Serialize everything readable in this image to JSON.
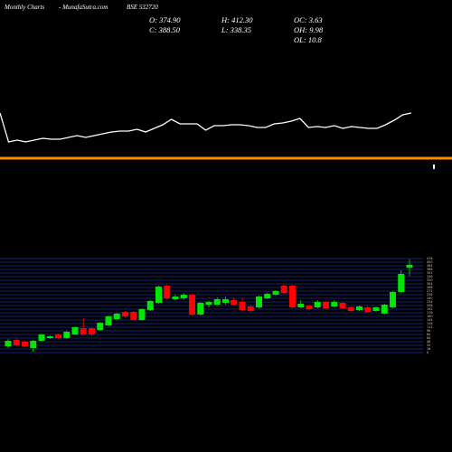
{
  "header": {
    "left": "Monthly Charts",
    "site": "- MunafaSutra.com",
    "symbol": "BSE 532720",
    "stats": [
      "O: 374.90",
      "C: 388.50",
      "H: 412.30",
      "L: 338.35",
      "OC: 3.63",
      "OH: 9.98",
      "OL: 10.8"
    ]
  },
  "chart_data": [
    {
      "type": "line",
      "color": "#ffffff",
      "ylim": [
        0,
        60
      ],
      "values": [
        45,
        13,
        15,
        13,
        15,
        17,
        16,
        16,
        18,
        20,
        18,
        20,
        22,
        24,
        25,
        25,
        27,
        24,
        28,
        32,
        38,
        33,
        33,
        33,
        26,
        31,
        31,
        32,
        32,
        31,
        29,
        29,
        33,
        34,
        36,
        39,
        29,
        30,
        29,
        31,
        28,
        30,
        29,
        28,
        28,
        32,
        37,
        43,
        45
      ]
    },
    {
      "type": "candlestick",
      "up_color": "#00e600",
      "down_color": "#ff0000",
      "grid": true,
      "ylim": [
        0,
        420
      ],
      "yticks": [
        0,
        16,
        32,
        48,
        64,
        80,
        96,
        112,
        128,
        144,
        160,
        176,
        192,
        208,
        224,
        240,
        256,
        272,
        288,
        304,
        320,
        336,
        352,
        368,
        384,
        400,
        416
      ],
      "open": [
        28,
        56,
        48,
        20,
        52,
        64,
        80,
        64,
        80,
        108,
        108,
        100,
        120,
        148,
        180,
        180,
        144,
        188,
        220,
        296,
        236,
        240,
        256,
        168,
        212,
        212,
        220,
        232,
        224,
        204,
        200,
        240,
        256,
        296,
        296,
        200,
        208,
        200,
        224,
        204,
        220,
        200,
        188,
        200,
        184,
        172,
        200,
        268,
        374.9
      ],
      "high": [
        60,
        60,
        52,
        56,
        84,
        76,
        84,
        96,
        116,
        152,
        112,
        136,
        164,
        176,
        184,
        184,
        196,
        232,
        296,
        300,
        256,
        264,
        260,
        224,
        228,
        244,
        248,
        244,
        240,
        212,
        252,
        264,
        276,
        300,
        300,
        232,
        212,
        232,
        228,
        232,
        224,
        204,
        208,
        204,
        204,
        216,
        272,
        364,
        412.3
      ],
      "low": [
        20,
        28,
        24,
        4,
        48,
        60,
        60,
        60,
        76,
        76,
        72,
        96,
        116,
        144,
        156,
        140,
        140,
        184,
        216,
        236,
        232,
        232,
        164,
        164,
        200,
        208,
        212,
        208,
        184,
        180,
        196,
        236,
        252,
        260,
        196,
        196,
        188,
        196,
        192,
        200,
        192,
        180,
        184,
        176,
        180,
        168,
        196,
        264,
        338.35
      ],
      "close": [
        52,
        32,
        28,
        52,
        80,
        72,
        64,
        92,
        112,
        80,
        80,
        132,
        160,
        172,
        160,
        144,
        192,
        228,
        292,
        240,
        248,
        256,
        168,
        220,
        224,
        236,
        236,
        212,
        188,
        184,
        248,
        260,
        272,
        264,
        200,
        216,
        192,
        224,
        196,
        224,
        196,
        184,
        204,
        180,
        200,
        212,
        268,
        348,
        388.5
      ]
    }
  ]
}
